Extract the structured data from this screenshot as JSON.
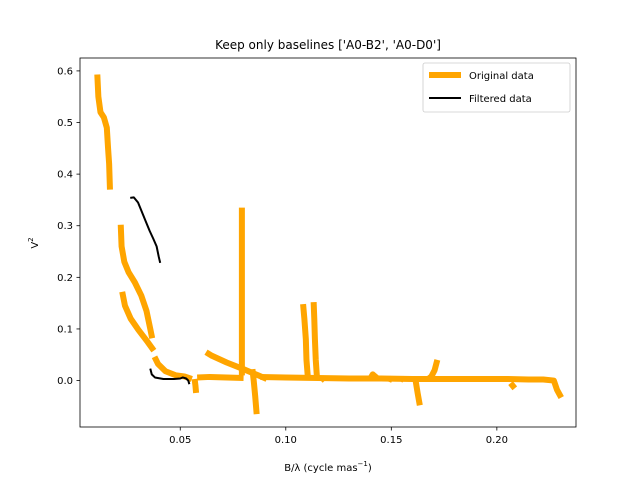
{
  "chart_data": {
    "type": "line",
    "title": "Keep only baselines ['A0-B2', 'A0-D0']",
    "xlabel": "B/λ (cycle mas",
    "xlabel_sup": "−1",
    "xlabel_close": ")",
    "ylabel": "V",
    "ylabel_sup": "2",
    "xlim": [
      0.0025,
      0.2375
    ],
    "ylim": [
      -0.09,
      0.625
    ],
    "xticks": [
      0.05,
      0.1,
      0.15,
      0.2
    ],
    "xtick_labels": [
      "0.05",
      "0.10",
      "0.15",
      "0.20"
    ],
    "yticks": [
      0.0,
      0.1,
      0.2,
      0.3,
      0.4,
      0.5,
      0.6
    ],
    "ytick_labels": [
      "0.0",
      "0.1",
      "0.2",
      "0.3",
      "0.4",
      "0.5",
      "0.6"
    ],
    "legend_position": "top-right",
    "colors": {
      "original": "#ffa500",
      "filtered": "#000000"
    },
    "series": [
      {
        "name": "Original data",
        "segments": [
          [
            [
              0.0107,
              0.593
            ],
            [
              0.0112,
              0.55
            ],
            [
              0.0122,
              0.52
            ],
            [
              0.0138,
              0.51
            ],
            [
              0.0152,
              0.49
            ],
            [
              0.0158,
              0.45
            ],
            [
              0.0163,
              0.42
            ],
            [
              0.0167,
              0.37
            ]
          ],
          [
            [
              0.0218,
              0.302
            ],
            [
              0.0222,
              0.26
            ],
            [
              0.0235,
              0.23
            ],
            [
              0.0255,
              0.21
            ],
            [
              0.0285,
              0.19
            ],
            [
              0.0315,
              0.165
            ],
            [
              0.034,
              0.135
            ],
            [
              0.0358,
              0.1
            ],
            [
              0.0367,
              0.082
            ]
          ],
          [
            [
              0.0225,
              0.172
            ],
            [
              0.0238,
              0.145
            ],
            [
              0.0265,
              0.12
            ],
            [
              0.0302,
              0.098
            ],
            [
              0.0345,
              0.075
            ],
            [
              0.0375,
              0.058
            ]
          ],
          [
            [
              0.0378,
              0.046
            ],
            [
              0.0395,
              0.032
            ],
            [
              0.043,
              0.018
            ],
            [
              0.048,
              0.01
            ],
            [
              0.052,
              0.008
            ],
            [
              0.0555,
              0.003
            ]
          ],
          [
            [
              0.0568,
              0.003
            ],
            [
              0.0572,
              -0.01
            ],
            [
              0.0575,
              -0.024
            ]
          ],
          [
            [
              0.058,
              0.006
            ],
            [
              0.064,
              0.007
            ],
            [
              0.072,
              0.006
            ],
            [
              0.08,
              0.005
            ]
          ],
          [
            [
              0.0622,
              0.055
            ],
            [
              0.065,
              0.048
            ],
            [
              0.072,
              0.035
            ],
            [
              0.08,
              0.022
            ],
            [
              0.087,
              0.01
            ],
            [
              0.091,
              0.003
            ]
          ],
          [
            [
              0.0792,
              0.335
            ],
            [
              0.0792,
              0.25
            ],
            [
              0.0792,
              0.15
            ],
            [
              0.0792,
              0.05
            ],
            [
              0.0792,
              0.01
            ]
          ],
          [
            [
              0.0842,
              0.022
            ],
            [
              0.0848,
              0.0
            ],
            [
              0.0855,
              -0.03
            ],
            [
              0.0862,
              -0.065
            ]
          ],
          [
            [
              0.088,
              0.007
            ],
            [
              0.1,
              0.006
            ],
            [
              0.115,
              0.005
            ],
            [
              0.13,
              0.004
            ],
            [
              0.145,
              0.004
            ],
            [
              0.16,
              0.003
            ],
            [
              0.175,
              0.003
            ],
            [
              0.19,
              0.003
            ],
            [
              0.205,
              0.003
            ],
            [
              0.215,
              0.002
            ],
            [
              0.222,
              0.002
            ],
            [
              0.227,
              0.0
            ],
            [
              0.2285,
              -0.018
            ],
            [
              0.2305,
              -0.033
            ]
          ],
          [
            [
              0.1082,
              0.148
            ],
            [
              0.1088,
              0.12
            ],
            [
              0.1095,
              0.08
            ],
            [
              0.1098,
              0.04
            ],
            [
              0.1105,
              0.004
            ]
          ],
          [
            [
              0.1132,
              0.152
            ],
            [
              0.1135,
              0.12
            ],
            [
              0.1138,
              0.08
            ],
            [
              0.1142,
              0.04
            ],
            [
              0.1148,
              0.004
            ]
          ],
          [
            [
              0.117,
              0.006
            ],
            [
              0.1185,
              0.0
            ]
          ],
          [
            [
              0.1398,
              0.002
            ],
            [
              0.1412,
              0.012
            ],
            [
              0.1435,
              0.004
            ]
          ],
          [
            [
              0.1488,
              0.004
            ],
            [
              0.1505,
              0.001
            ]
          ],
          [
            [
              0.1548,
              0.004
            ],
            [
              0.156,
              0.001
            ]
          ],
          [
            [
              0.1615,
              0.0
            ],
            [
              0.1625,
              -0.025
            ],
            [
              0.1635,
              -0.048
            ]
          ],
          [
            [
              0.1675,
              0.003
            ],
            [
              0.169,
              0.008
            ],
            [
              0.1705,
              0.02
            ],
            [
              0.1718,
              0.04
            ]
          ],
          [
            [
              0.2065,
              -0.005
            ],
            [
              0.2085,
              -0.015
            ]
          ]
        ]
      },
      {
        "name": "Filtered data",
        "segments": [
          [
            [
              0.0263,
              0.354
            ],
            [
              0.028,
              0.355
            ],
            [
              0.03,
              0.345
            ],
            [
              0.0315,
              0.33
            ],
            [
              0.0335,
              0.31
            ],
            [
              0.0355,
              0.29
            ],
            [
              0.0372,
              0.275
            ],
            [
              0.0388,
              0.26
            ],
            [
              0.0398,
              0.24
            ],
            [
              0.0405,
              0.228
            ]
          ],
          [
            [
              0.0358,
              0.023
            ],
            [
              0.0365,
              0.012
            ],
            [
              0.038,
              0.006
            ],
            [
              0.042,
              0.003
            ],
            [
              0.047,
              0.003
            ],
            [
              0.05,
              0.004
            ],
            [
              0.0512,
              0.006
            ],
            [
              0.0528,
              0.004
            ],
            [
              0.0538,
              0.0
            ],
            [
              0.0543,
              -0.007
            ]
          ]
        ]
      }
    ]
  }
}
